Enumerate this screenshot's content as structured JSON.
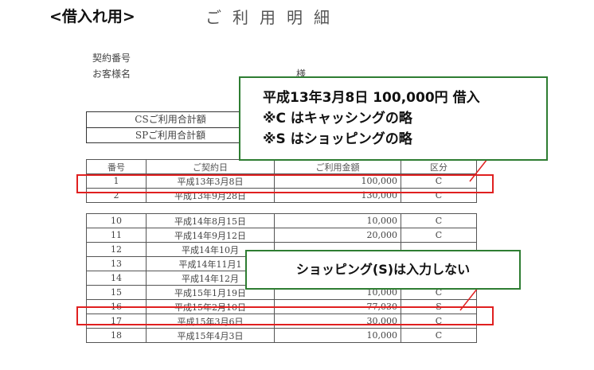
{
  "header": {
    "section_label": "<借入れ用>",
    "doc_title": "ご利用明細"
  },
  "info": {
    "contract_no_label": "契約番号",
    "customer_label": "お客様名",
    "honorific": "様"
  },
  "summary": {
    "cs_label": "CSご利用合計額",
    "sp_label": "SPご利用合計額"
  },
  "table": {
    "headers": [
      "番号",
      "ご契約日",
      "ご利用金額",
      "区分"
    ],
    "group1": [
      [
        "1",
        "平成13年3月8日",
        "100,000",
        "C"
      ],
      [
        "2",
        "平成13年9月28日",
        "130,000",
        "C"
      ]
    ],
    "group2": [
      [
        "10",
        "平成14年8月15日",
        "10,000",
        "C"
      ],
      [
        "11",
        "平成14年9月12日",
        "20,000",
        "C"
      ],
      [
        "12",
        "平成14年10月",
        "",
        ""
      ],
      [
        "13",
        "平成14年11月1",
        "",
        ""
      ],
      [
        "14",
        "平成14年12月",
        "",
        ""
      ],
      [
        "15",
        "平成15年1月19日",
        "10,000",
        "C"
      ],
      [
        "16",
        "平成15年2月10日",
        "77,030",
        "S"
      ],
      [
        "17",
        "平成15年3月6日",
        "30,000",
        "C"
      ],
      [
        "18",
        "平成15年4月3日",
        "10,000",
        "C"
      ]
    ]
  },
  "callouts": {
    "c1_line1": "平成13年3月8日 100,000円 借入",
    "c1_line2": "※C はキャッシングの略",
    "c1_line3": "※S はショッピングの略",
    "c2_text": "ショッピング(S)は入力しない"
  },
  "colors": {
    "highlight": "#e02020",
    "callout_border": "#2e7d32"
  }
}
